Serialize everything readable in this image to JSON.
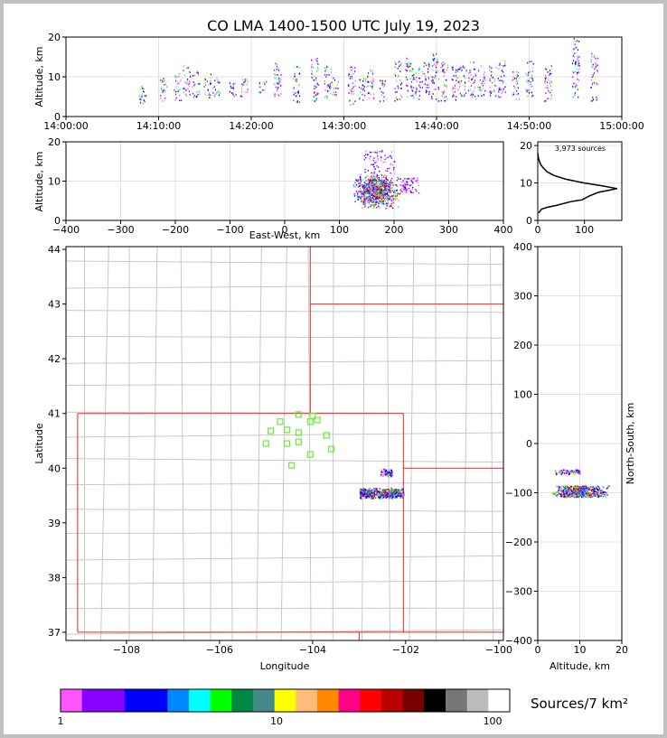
{
  "title": "CO LMA 1400-1500 UTC July 19, 2023",
  "chart_data": [
    {
      "panel": "time-height",
      "type": "scatter",
      "xlabel": "",
      "ylabel": "Altitude, km",
      "x_ticks": [
        "14:00:00",
        "14:10:00",
        "14:20:00",
        "14:30:00",
        "14:40:00",
        "14:50:00",
        "15:00:00"
      ],
      "xlim_minutes": [
        0,
        60
      ],
      "ylim": [
        0,
        20
      ],
      "y_ticks": [
        0,
        10,
        20
      ],
      "grid": true,
      "event_bursts": [
        {
          "time_min": 8.2,
          "alt_range": [
            3,
            8
          ]
        },
        {
          "time_min": 10.5,
          "alt_range": [
            4,
            10
          ]
        },
        {
          "time_min": 12.0,
          "alt_range": [
            4,
            11
          ]
        },
        {
          "time_min": 13.0,
          "alt_range": [
            5,
            13
          ]
        },
        {
          "time_min": 14.0,
          "alt_range": [
            5,
            12
          ]
        },
        {
          "time_min": 15.2,
          "alt_range": [
            4,
            11
          ]
        },
        {
          "time_min": 16.2,
          "alt_range": [
            5,
            10
          ]
        },
        {
          "time_min": 18.0,
          "alt_range": [
            5,
            9
          ]
        },
        {
          "time_min": 19.2,
          "alt_range": [
            5,
            10
          ]
        },
        {
          "time_min": 21.2,
          "alt_range": [
            6,
            9
          ]
        },
        {
          "time_min": 22.8,
          "alt_range": [
            5,
            14
          ]
        },
        {
          "time_min": 24.8,
          "alt_range": [
            3,
            13
          ]
        },
        {
          "time_min": 26.8,
          "alt_range": [
            4,
            15
          ]
        },
        {
          "time_min": 28.2,
          "alt_range": [
            4,
            14
          ]
        },
        {
          "time_min": 29.0,
          "alt_range": [
            5,
            10
          ]
        },
        {
          "time_min": 30.8,
          "alt_range": [
            3,
            13
          ]
        },
        {
          "time_min": 32.0,
          "alt_range": [
            4,
            11
          ]
        },
        {
          "time_min": 32.8,
          "alt_range": [
            4,
            12
          ]
        },
        {
          "time_min": 34.2,
          "alt_range": [
            4,
            10
          ]
        },
        {
          "time_min": 35.8,
          "alt_range": [
            4,
            14
          ]
        },
        {
          "time_min": 37.0,
          "alt_range": [
            4,
            15
          ]
        },
        {
          "time_min": 37.8,
          "alt_range": [
            4,
            13
          ]
        },
        {
          "time_min": 38.8,
          "alt_range": [
            5,
            14
          ]
        },
        {
          "time_min": 39.8,
          "alt_range": [
            4,
            16
          ]
        },
        {
          "time_min": 40.8,
          "alt_range": [
            4,
            14
          ]
        },
        {
          "time_min": 42.0,
          "alt_range": [
            4,
            13
          ]
        },
        {
          "time_min": 42.8,
          "alt_range": [
            5,
            13
          ]
        },
        {
          "time_min": 43.8,
          "alt_range": [
            4,
            14
          ]
        },
        {
          "time_min": 44.8,
          "alt_range": [
            5,
            13
          ]
        },
        {
          "time_min": 46.0,
          "alt_range": [
            5,
            13
          ]
        },
        {
          "time_min": 47.0,
          "alt_range": [
            5,
            15
          ]
        },
        {
          "time_min": 48.5,
          "alt_range": [
            4,
            12
          ]
        },
        {
          "time_min": 50.0,
          "alt_range": [
            5,
            14
          ]
        },
        {
          "time_min": 52.0,
          "alt_range": [
            4,
            13
          ]
        },
        {
          "time_min": 55.0,
          "alt_range": [
            4,
            20
          ]
        },
        {
          "time_min": 57.0,
          "alt_range": [
            4,
            16
          ]
        }
      ]
    },
    {
      "panel": "east-west-altitude",
      "type": "scatter",
      "xlabel": "East-West, km",
      "ylabel": "Altitude, km",
      "xlim": [
        -400,
        400
      ],
      "x_ticks": [
        -400,
        -300,
        -200,
        -100,
        0,
        100,
        200,
        300,
        400
      ],
      "ylim": [
        0,
        20
      ],
      "y_ticks": [
        0,
        10,
        20
      ],
      "grid": true,
      "clusters": [
        {
          "x_range": [
            125,
            210
          ],
          "alt_range": [
            3,
            12
          ],
          "density": "high"
        },
        {
          "x_range": [
            145,
            200
          ],
          "alt_range": [
            12,
            18
          ],
          "density": "low"
        },
        {
          "x_range": [
            210,
            245
          ],
          "alt_range": [
            7,
            11
          ],
          "density": "low"
        }
      ]
    },
    {
      "panel": "altitude-histogram",
      "type": "line",
      "annotation": "3,973 sources",
      "xlim": [
        0,
        180
      ],
      "x_ticks": [
        0,
        100
      ],
      "ylim": [
        0,
        21
      ],
      "y_ticks": [
        0,
        10,
        20
      ],
      "x": [
        2,
        8,
        20,
        40,
        70,
        95,
        110,
        130,
        150,
        170,
        140,
        100,
        60,
        35,
        20,
        12,
        6,
        3,
        1,
        0
      ],
      "y": [
        2,
        3,
        3.5,
        4,
        5,
        5.5,
        6.5,
        7.5,
        8,
        8.5,
        9.2,
        10,
        11,
        12,
        13,
        14,
        15,
        16,
        17,
        18
      ]
    },
    {
      "panel": "plan-view",
      "type": "scatter",
      "xlabel": "Longitude",
      "ylabel": "Latitude",
      "xlim": [
        -109.3,
        -99.9
      ],
      "ylim": [
        36.85,
        44.05
      ],
      "x_ticks": [
        -108,
        -106,
        -104,
        -102,
        -100
      ],
      "y_ticks": [
        37,
        38,
        39,
        40,
        41,
        42,
        43,
        44
      ],
      "stations": [
        {
          "lon": -105.0,
          "lat": 40.45
        },
        {
          "lon": -104.9,
          "lat": 40.68
        },
        {
          "lon": -104.7,
          "lat": 40.85
        },
        {
          "lon": -104.55,
          "lat": 40.7
        },
        {
          "lon": -104.55,
          "lat": 40.45
        },
        {
          "lon": -104.45,
          "lat": 40.05
        },
        {
          "lon": -104.3,
          "lat": 40.48
        },
        {
          "lon": -104.3,
          "lat": 40.65
        },
        {
          "lon": -104.3,
          "lat": 40.98
        },
        {
          "lon": -104.05,
          "lat": 40.85
        },
        {
          "lon": -104.0,
          "lat": 40.95
        },
        {
          "lon": -103.9,
          "lat": 40.88
        },
        {
          "lon": -104.05,
          "lat": 40.25
        },
        {
          "lon": -103.7,
          "lat": 40.6
        },
        {
          "lon": -103.6,
          "lat": 40.35
        }
      ],
      "source_clusters": [
        {
          "lon_range": [
            -103.0,
            -102.05
          ],
          "lat_range": [
            39.45,
            39.65
          ],
          "density": "high"
        },
        {
          "lon_range": [
            -102.55,
            -102.3
          ],
          "lat_range": [
            39.85,
            40.0
          ],
          "density": "medium"
        }
      ]
    },
    {
      "panel": "altitude-north-south",
      "type": "scatter",
      "xlabel": "Altitude, km",
      "ylabel": "North-South, km",
      "xlim": [
        0,
        20
      ],
      "x_ticks": [
        0,
        10,
        20
      ],
      "ylim": [
        -400,
        400
      ],
      "y_ticks": [
        -400,
        -300,
        -200,
        -100,
        0,
        100,
        200,
        300,
        400
      ],
      "grid": true,
      "clusters": [
        {
          "alt_range": [
            3,
            17
          ],
          "ns_range": [
            -108,
            -85
          ],
          "density": "high"
        },
        {
          "alt_range": [
            4,
            10
          ],
          "ns_range": [
            -62,
            -52
          ],
          "density": "medium"
        }
      ]
    },
    {
      "panel": "colorbar",
      "type": "heatmap",
      "scale": "log",
      "range": [
        1,
        120
      ],
      "tick_labels": [
        "1",
        "10",
        "100"
      ],
      "label": "Sources/7 km²",
      "colors": [
        "#ff55ff",
        "#8800ff",
        "#8800ff",
        "#0000ff",
        "#0000ff",
        "#0088ff",
        "#00ffff",
        "#00ff00",
        "#008844",
        "#448888",
        "#ffff00",
        "#ffbb77",
        "#ff8800",
        "#ff0088",
        "#ff0000",
        "#bb0000",
        "#770000",
        "#000000",
        "#777777",
        "#bbbbbb",
        "#ffffff"
      ]
    }
  ]
}
